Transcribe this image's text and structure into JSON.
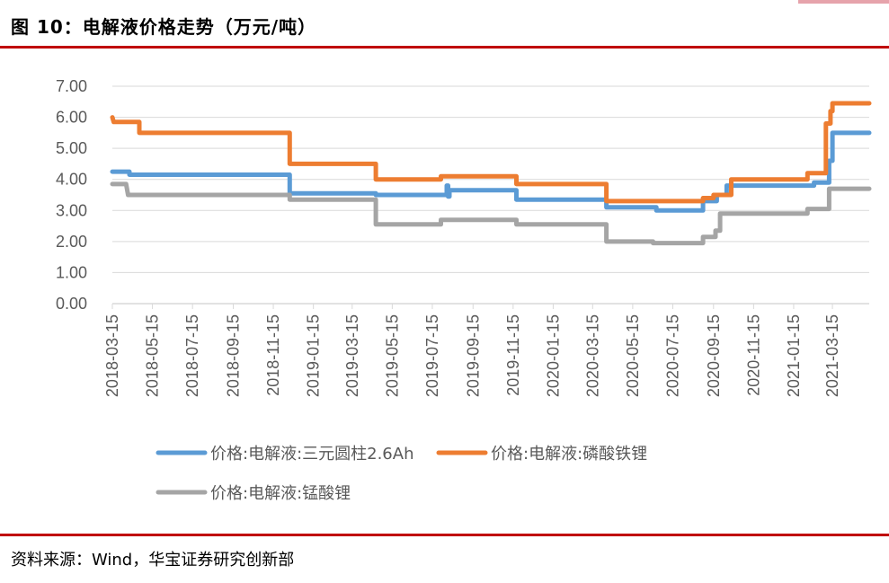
{
  "figure": {
    "title": "图 10：电解液价格走势（万元/吨）"
  },
  "source": "资料来源：Wind，华宝证券研究创新部",
  "chart_data": {
    "type": "line",
    "title": "",
    "xlabel": "",
    "ylabel": "",
    "ylim": [
      0,
      7
    ],
    "yticks": [
      "0.00",
      "1.00",
      "2.00",
      "3.00",
      "4.00",
      "5.00",
      "6.00",
      "7.00"
    ],
    "xlim": [
      "2018-03-15",
      "2021-05-10"
    ],
    "xticks": [
      "2018-03-15",
      "2018-05-15",
      "2018-07-15",
      "2018-09-15",
      "2018-11-15",
      "2019-01-15",
      "2019-03-15",
      "2019-05-15",
      "2019-07-15",
      "2019-09-15",
      "2019-11-15",
      "2020-01-15",
      "2020-03-15",
      "2020-05-15",
      "2020-07-15",
      "2020-09-15",
      "2020-11-15",
      "2021-01-15",
      "2021-03-15"
    ],
    "grid": "horizontal",
    "legend_position": "bottom",
    "series": [
      {
        "name": "价格:电解液:三元圆柱2.6Ah",
        "color": "#5b9bd5",
        "points": [
          [
            "2018-03-15",
            4.25
          ],
          [
            "2018-04-10",
            4.25
          ],
          [
            "2018-04-10",
            4.15
          ],
          [
            "2018-12-10",
            4.15
          ],
          [
            "2018-12-10",
            3.55
          ],
          [
            "2019-04-20",
            3.55
          ],
          [
            "2019-04-20",
            3.5
          ],
          [
            "2019-08-06",
            3.5
          ],
          [
            "2019-08-06",
            3.8
          ],
          [
            "2019-08-08",
            3.8
          ],
          [
            "2019-08-08",
            3.45
          ],
          [
            "2019-08-10",
            3.45
          ],
          [
            "2019-08-10",
            3.65
          ],
          [
            "2019-11-20",
            3.65
          ],
          [
            "2019-11-20",
            3.35
          ],
          [
            "2020-04-05",
            3.35
          ],
          [
            "2020-04-05",
            3.1
          ],
          [
            "2020-06-20",
            3.1
          ],
          [
            "2020-06-20",
            3.0
          ],
          [
            "2020-08-30",
            3.0
          ],
          [
            "2020-08-30",
            3.3
          ],
          [
            "2020-09-20",
            3.3
          ],
          [
            "2020-09-20",
            3.5
          ],
          [
            "2020-10-05",
            3.5
          ],
          [
            "2020-10-05",
            3.8
          ],
          [
            "2021-02-15",
            3.8
          ],
          [
            "2021-02-15",
            3.9
          ],
          [
            "2021-03-10",
            3.9
          ],
          [
            "2021-03-10",
            4.6
          ],
          [
            "2021-03-15",
            4.6
          ],
          [
            "2021-03-15",
            5.5
          ],
          [
            "2021-05-10",
            5.5
          ]
        ]
      },
      {
        "name": "价格:电解液:磷酸铁锂",
        "color": "#ed7d31",
        "points": [
          [
            "2018-03-15",
            6.0
          ],
          [
            "2018-03-17",
            5.85
          ],
          [
            "2018-04-25",
            5.85
          ],
          [
            "2018-04-25",
            5.5
          ],
          [
            "2018-12-10",
            5.5
          ],
          [
            "2018-12-10",
            4.5
          ],
          [
            "2019-04-20",
            4.5
          ],
          [
            "2019-04-20",
            4.0
          ],
          [
            "2019-07-28",
            4.0
          ],
          [
            "2019-07-28",
            4.1
          ],
          [
            "2019-11-20",
            4.1
          ],
          [
            "2019-11-20",
            3.85
          ],
          [
            "2020-04-05",
            3.85
          ],
          [
            "2020-04-05",
            3.3
          ],
          [
            "2020-08-30",
            3.3
          ],
          [
            "2020-08-30",
            3.4
          ],
          [
            "2020-09-15",
            3.4
          ],
          [
            "2020-09-15",
            3.5
          ],
          [
            "2020-10-12",
            3.5
          ],
          [
            "2020-10-12",
            4.0
          ],
          [
            "2021-02-05",
            4.0
          ],
          [
            "2021-02-05",
            4.2
          ],
          [
            "2021-03-05",
            4.2
          ],
          [
            "2021-03-05",
            5.8
          ],
          [
            "2021-03-12",
            5.8
          ],
          [
            "2021-03-12",
            6.2
          ],
          [
            "2021-03-15",
            6.2
          ],
          [
            "2021-03-15",
            6.45
          ],
          [
            "2021-05-10",
            6.45
          ]
        ]
      },
      {
        "name": "价格:电解液:锰酸锂",
        "color": "#a5a5a5",
        "points": [
          [
            "2018-03-15",
            3.85
          ],
          [
            "2018-04-05",
            3.85
          ],
          [
            "2018-04-08",
            3.5
          ],
          [
            "2018-12-10",
            3.5
          ],
          [
            "2018-12-10",
            3.35
          ],
          [
            "2019-04-20",
            3.35
          ],
          [
            "2019-04-20",
            2.55
          ],
          [
            "2019-07-28",
            2.55
          ],
          [
            "2019-07-28",
            2.7
          ],
          [
            "2019-11-20",
            2.7
          ],
          [
            "2019-11-20",
            2.55
          ],
          [
            "2020-04-05",
            2.55
          ],
          [
            "2020-04-05",
            2.0
          ],
          [
            "2020-06-15",
            2.0
          ],
          [
            "2020-06-15",
            1.95
          ],
          [
            "2020-08-30",
            1.95
          ],
          [
            "2020-08-30",
            2.15
          ],
          [
            "2020-09-18",
            2.15
          ],
          [
            "2020-09-18",
            2.35
          ],
          [
            "2020-09-25",
            2.35
          ],
          [
            "2020-09-25",
            2.9
          ],
          [
            "2021-02-05",
            2.9
          ],
          [
            "2021-02-05",
            3.05
          ],
          [
            "2021-03-10",
            3.05
          ],
          [
            "2021-03-10",
            3.7
          ],
          [
            "2021-05-10",
            3.7
          ]
        ]
      }
    ]
  }
}
